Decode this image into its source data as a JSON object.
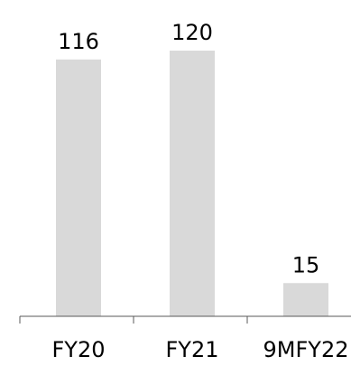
{
  "chart_data": {
    "type": "bar",
    "categories": [
      "FY20",
      "FY21",
      "9MFY22"
    ],
    "values": [
      116,
      120,
      15
    ],
    "data_labels": [
      "116",
      "120",
      "15"
    ],
    "title": "",
    "xlabel": "",
    "ylabel": "",
    "ylim": [
      0,
      120
    ],
    "grid": false,
    "legend": "none",
    "colors": {
      "bar": "#d9d9d9",
      "axis": "#595959",
      "text": "#000000"
    }
  }
}
